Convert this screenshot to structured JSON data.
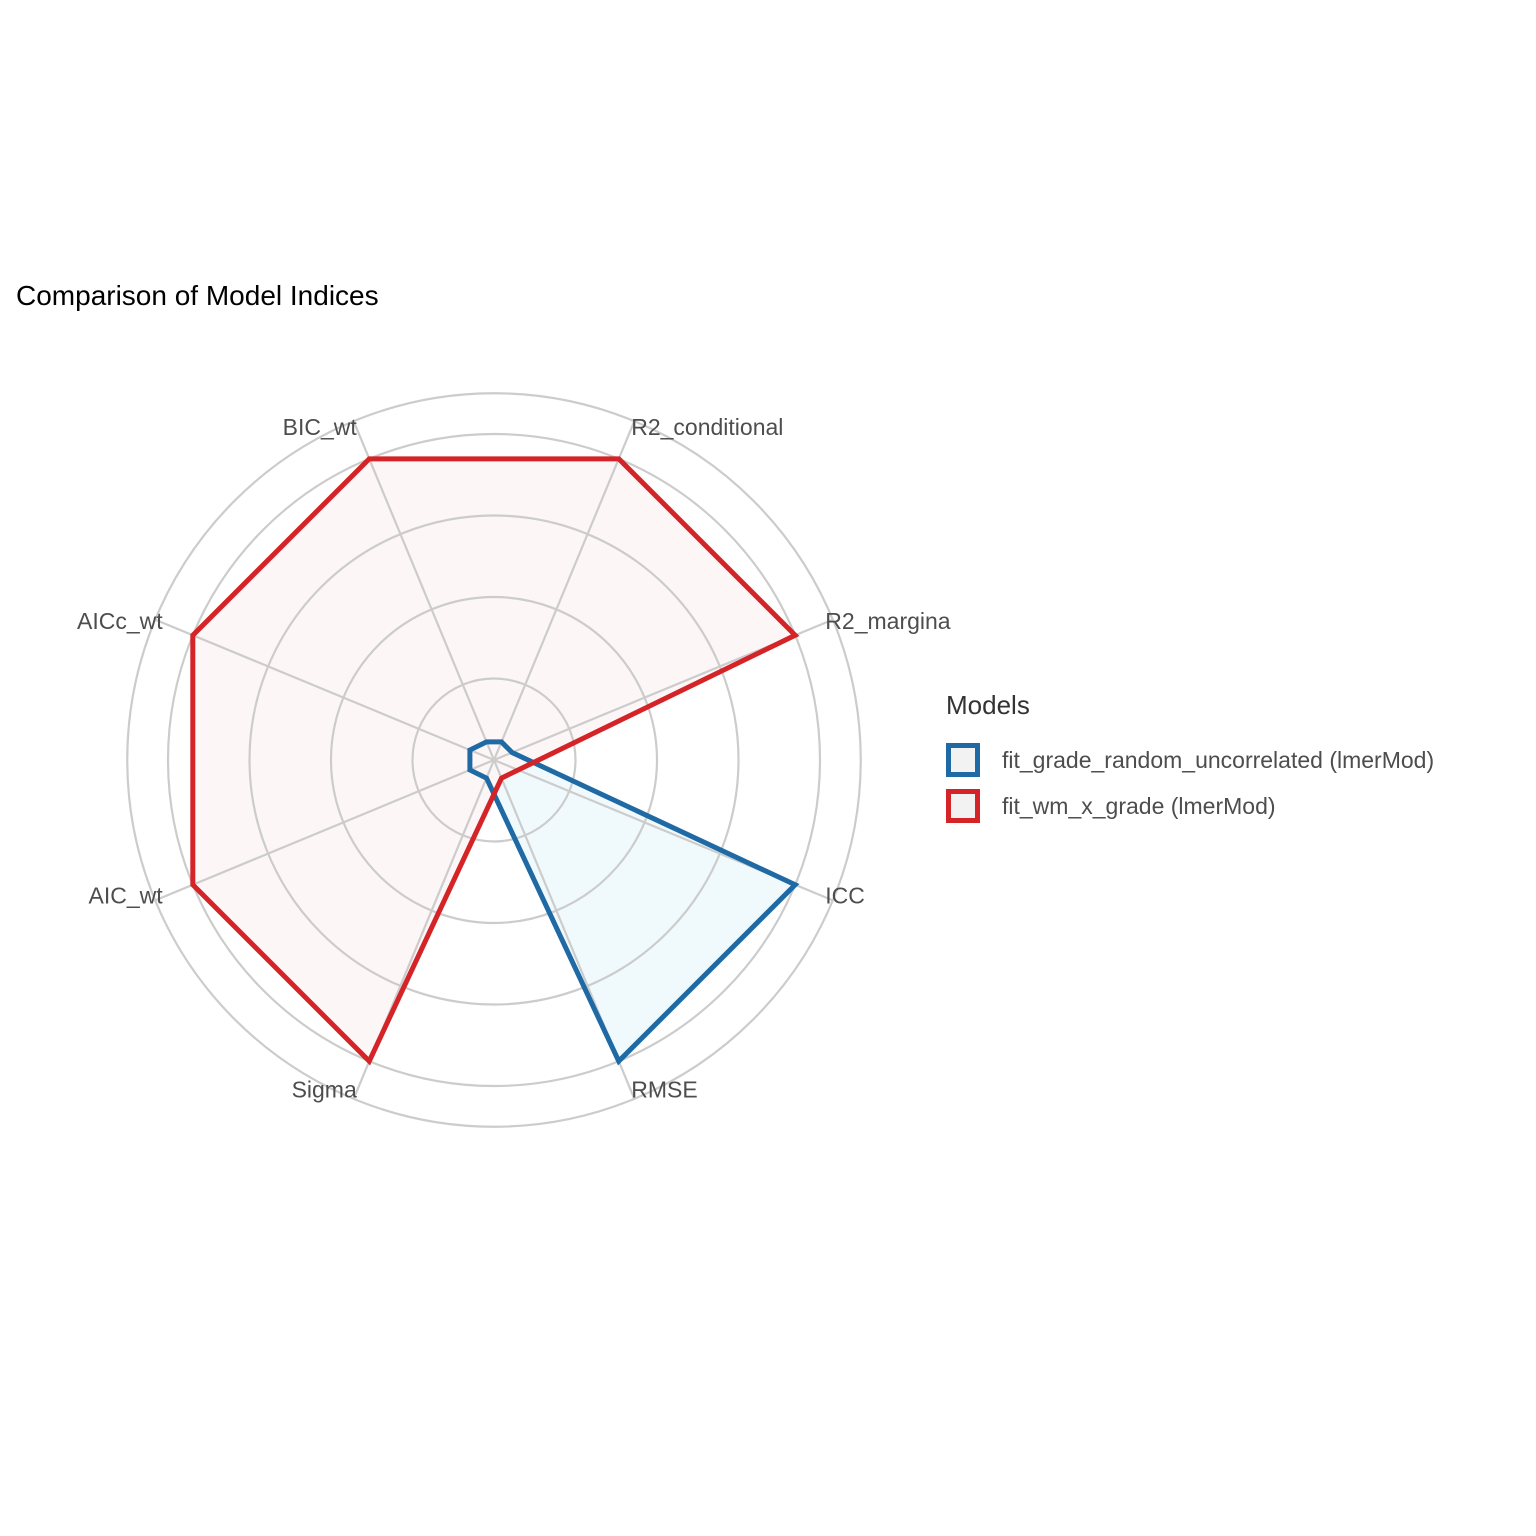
{
  "chart_data": {
    "type": "radar",
    "title": "Comparison of Model Indices",
    "axes": [
      "R2_conditional",
      "R2_margina",
      "ICC",
      "RMSE",
      "Sigma",
      "AIC_wt",
      "AICc_wt",
      "BIC_wt"
    ],
    "rlim": [
      0,
      1
    ],
    "grid": true,
    "legend_title": "Models",
    "legend_position": "right",
    "series": [
      {
        "name": "fit_grade_random_uncorrelated (lmerMod)",
        "color": "#1f6aa5",
        "fill": "#f0fafc",
        "values": [
          0.06,
          0.06,
          1.0,
          1.0,
          0.06,
          0.08,
          0.08,
          0.06
        ]
      },
      {
        "name": "fit_wm_x_grade (lmerMod)",
        "color": "#d42428",
        "fill": "#fdf6f7",
        "values": [
          1.0,
          1.0,
          0.08,
          0.06,
          1.0,
          1.0,
          1.0,
          1.0
        ]
      }
    ]
  }
}
